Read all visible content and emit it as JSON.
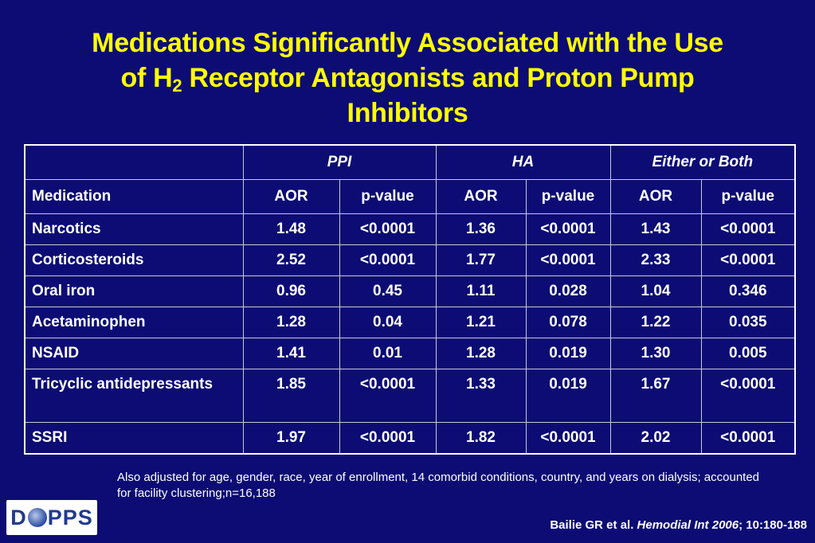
{
  "title": {
    "line1": "Medications Significantly Associated with the Use",
    "line2_pre": "of H",
    "line2_sub": "2",
    "line2_post": " Receptor Antagonists and Proton Pump",
    "line3": "Inhibitors"
  },
  "table": {
    "groups": [
      "PPI",
      "HA",
      "Either or Both"
    ],
    "subheaders": [
      "Medication",
      "AOR",
      "p-value",
      "AOR",
      "p-value",
      "AOR",
      "p-value"
    ],
    "rows": [
      [
        "Narcotics",
        "1.48",
        "<0.0001",
        "1.36",
        "<0.0001",
        "1.43",
        "<0.0001"
      ],
      [
        "Corticosteroids",
        "2.52",
        "<0.0001",
        "1.77",
        "<0.0001",
        "2.33",
        "<0.0001"
      ],
      [
        "Oral iron",
        "0.96",
        "0.45",
        "1.11",
        "0.028",
        "1.04",
        "0.346"
      ],
      [
        "Acetaminophen",
        "1.28",
        "0.04",
        "1.21",
        "0.078",
        "1.22",
        "0.035"
      ],
      [
        "NSAID",
        "1.41",
        "0.01",
        "1.28",
        "0.019",
        "1.30",
        "0.005"
      ],
      [
        "Tricyclic antidepressants",
        "1.85",
        "<0.0001",
        "1.33",
        "0.019",
        "1.67",
        "<0.0001"
      ],
      [
        "SSRI",
        "1.97",
        "<0.0001",
        "1.82",
        "<0.0001",
        "2.02",
        "<0.0001"
      ]
    ]
  },
  "footnote": "Also adjusted for age, gender, race, year of enrollment, 14 comorbid conditions, country, and years on dialysis; accounted for facility clustering;n=16,188",
  "citation": {
    "authors": "Bailie GR et al. ",
    "journal": "Hemodial Int 2006",
    "details": "; 10:180-188"
  },
  "logo": {
    "left": "D",
    "right": "PPS",
    "icon": "globe-icon"
  },
  "colors": {
    "background": "#0c0c74",
    "title": "#ffff00",
    "text": "#ffffff"
  }
}
